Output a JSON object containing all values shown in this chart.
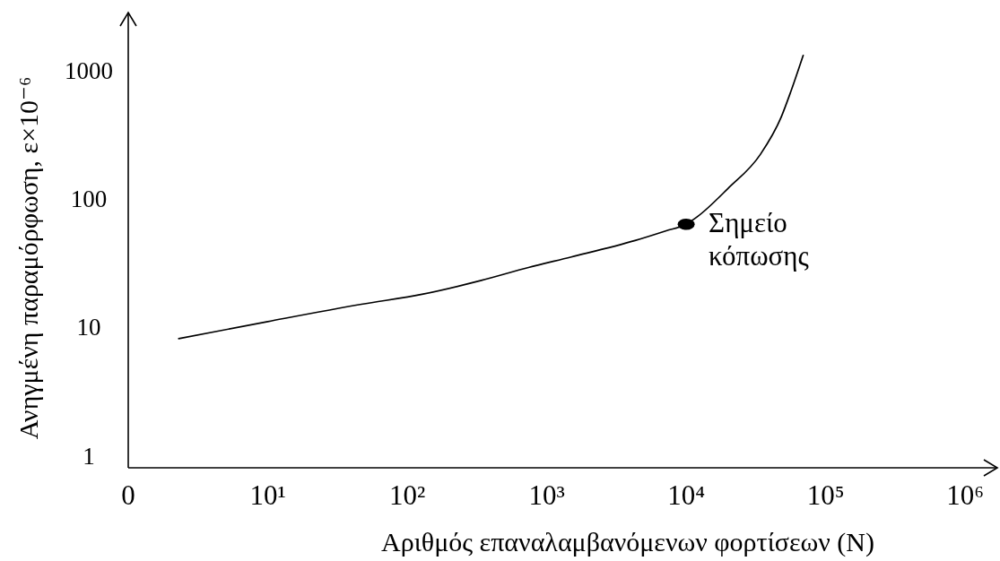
{
  "chart_data": {
    "type": "line",
    "xlabel": "Αριθμός επαναλαμβανόμενων φορτίσεων (N)",
    "ylabel": "Ανηγμένη παραμόρφωση, ε×10⁻⁶",
    "log": "xy",
    "xlim": [
      0,
      1700000
    ],
    "ylim": [
      0.8,
      2800
    ],
    "xticks": [
      0,
      {
        "value": 10,
        "label": "10¹"
      },
      {
        "value": 100,
        "label": "10²"
      },
      {
        "value": 1000,
        "label": "10³"
      },
      {
        "value": 10000,
        "label": "10⁴"
      },
      {
        "value": 100000,
        "label": "10⁵"
      },
      {
        "value": 1000000,
        "label": "10⁶"
      }
    ],
    "yticks": [
      1,
      10,
      100,
      1000
    ],
    "series": [
      {
        "type": "line",
        "color": "#000000",
        "x": [
          2.3,
          10,
          47,
          130,
          340,
          740,
          1500,
          4300,
          7200,
          10000,
          12000,
          20000,
          34000,
          48000,
          56000,
          69000
        ],
        "values": [
          8.1,
          11,
          15,
          18,
          23,
          29,
          35,
          47,
          56,
          63,
          72,
          120,
          220,
          430,
          670,
          1300
        ]
      },
      {
        "type": "scatter",
        "color": "#000000",
        "marker": "circle",
        "x": [
          10000
        ],
        "values": [
          63
        ]
      }
    ],
    "annotations": [
      {
        "text": "Σημείο\nκόπωσης",
        "x": 10000,
        "y": 63
      }
    ]
  }
}
